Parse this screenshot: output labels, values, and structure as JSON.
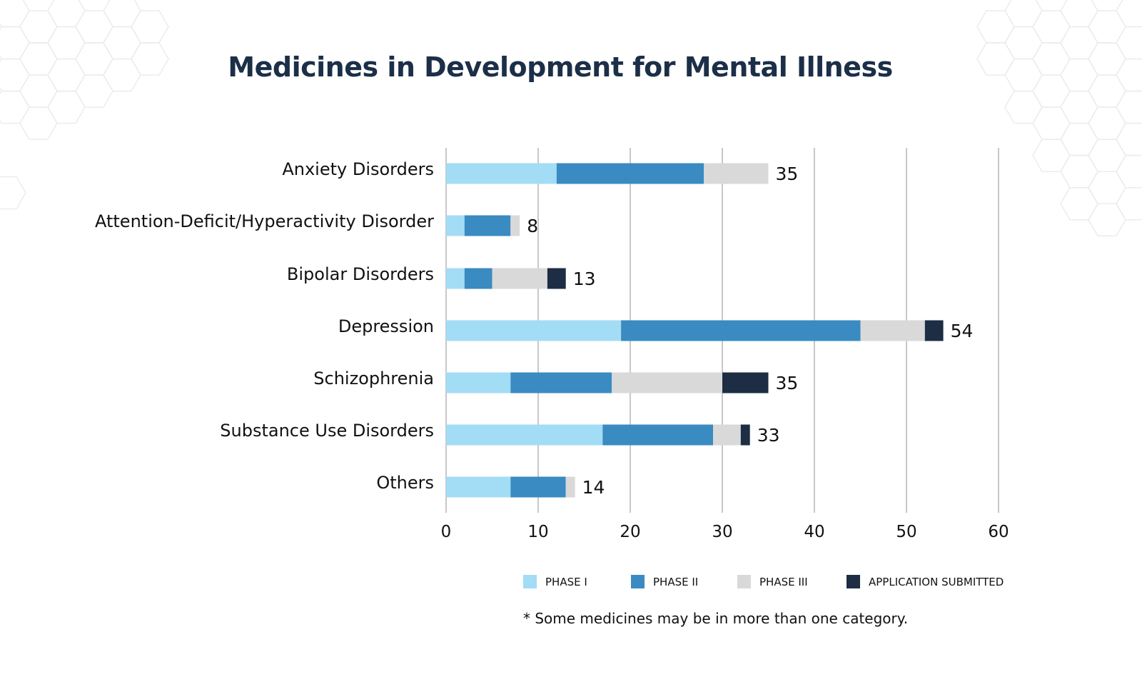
{
  "title": "Medicines in Development for Mental Illness",
  "footnote": "* Some medicines may be in more than one category.",
  "colors": {
    "phase1": "#a3dcf5",
    "phase2": "#3a8bc1",
    "phase3": "#d9d9d9",
    "submitted": "#1c2d44",
    "grid": "#c8c8c8",
    "title": "#1c2f48"
  },
  "chart_data": {
    "type": "bar",
    "orientation": "horizontal",
    "stacked": true,
    "categories": [
      "Anxiety Disorders",
      "Attention-Deficit/Hyperactivity Disorder",
      "Bipolar Disorders",
      "Depression",
      "Schizophrenia",
      "Substance Use Disorders",
      "Others"
    ],
    "series": [
      {
        "name": "PHASE I",
        "values": [
          12,
          2,
          2,
          19,
          7,
          17,
          7
        ]
      },
      {
        "name": "PHASE II",
        "values": [
          16,
          5,
          3,
          26,
          11,
          12,
          6
        ]
      },
      {
        "name": "PHASE III",
        "values": [
          7,
          1,
          6,
          7,
          12,
          3,
          1
        ]
      },
      {
        "name": "APPLICATION SUBMITTED",
        "values": [
          0,
          0,
          2,
          2,
          5,
          1,
          0
        ]
      }
    ],
    "totals": [
      "35",
      "8",
      "13",
      "54",
      "35",
      "33",
      "14"
    ],
    "xlim": [
      0,
      60
    ],
    "xticks": [
      "0",
      "10",
      "20",
      "30",
      "40",
      "50",
      "60"
    ],
    "grid": true,
    "legend_position": "bottom",
    "legend": [
      "PHASE I",
      "PHASE II",
      "PHASE III",
      "APPLICATION SUBMITTED"
    ]
  }
}
